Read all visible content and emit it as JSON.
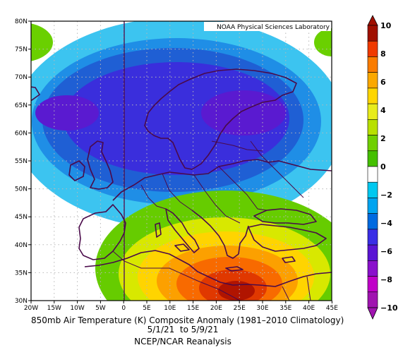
{
  "credit": "NOAA Physical Sciences Laboratory",
  "caption": {
    "line1": "850mb Air Temperature (K) Composite Anomaly (1981–2010 Climatology)",
    "line2": "5/1/21  to 5/9/21",
    "line3": "NCEP/NCAR Reanalysis"
  },
  "axes": {
    "lat_labels": [
      "30N",
      "35N",
      "40N",
      "45N",
      "50N",
      "55N",
      "60N",
      "65N",
      "70N",
      "75N",
      "80N"
    ],
    "lon_labels": [
      "20W",
      "15W",
      "10W",
      "5W",
      "0",
      "5E",
      "10E",
      "15E",
      "20E",
      "25E",
      "30E",
      "35E",
      "40E",
      "45E"
    ]
  },
  "colorbar": {
    "tick_labels": [
      "10",
      "8",
      "6",
      "4",
      "2",
      "0",
      "−2",
      "−4",
      "−6",
      "−8",
      "−10"
    ],
    "levels": [
      "#a01000",
      "#f03a00",
      "#fa7c00",
      "#fba800",
      "#ffd600",
      "#e8ec1c",
      "#b8e000",
      "#70d000",
      "#44c000",
      "#ffffff",
      "#00c8f0",
      "#00a4f0",
      "#006ae0",
      "#3a2ee6",
      "#5a14d4",
      "#8a10cc",
      "#c000c8",
      "#a014b0"
    ]
  },
  "colors": {
    "coast": "#4a0a4a",
    "grid": "#b8b8b8"
  }
}
